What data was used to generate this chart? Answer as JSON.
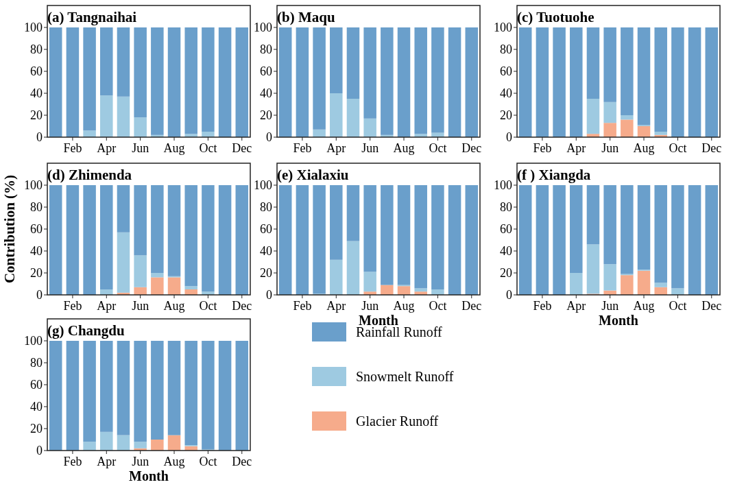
{
  "chart_data": [
    {
      "type": "bar",
      "stacked": true,
      "title": "(a) Tangnaihai",
      "categories": [
        null,
        "Feb",
        null,
        "Apr",
        null,
        "Jun",
        null,
        "Aug",
        null,
        "Oct",
        null,
        "Dec"
      ],
      "ylim": [
        0,
        120
      ],
      "yticks": [
        0,
        20,
        40,
        60,
        80,
        100
      ],
      "series": [
        {
          "color": "#f6ab8b",
          "values": [
            0,
            0,
            0,
            0,
            0,
            0,
            0,
            0,
            0,
            0,
            0,
            0
          ]
        },
        {
          "color": "#9ecae1",
          "values": [
            0,
            0,
            6,
            38,
            37,
            18,
            2,
            0,
            3,
            5,
            0,
            0
          ]
        },
        {
          "color": "#6a9fcb",
          "values": [
            100,
            100,
            94,
            62,
            63,
            82,
            98,
            100,
            97,
            95,
            100,
            100
          ]
        }
      ]
    },
    {
      "type": "bar",
      "stacked": true,
      "title": "(b) Maqu",
      "categories": [
        null,
        "Feb",
        null,
        "Apr",
        null,
        "Jun",
        null,
        "Aug",
        null,
        "Oct",
        null,
        "Dec"
      ],
      "ylim": [
        0,
        120
      ],
      "yticks": [
        0,
        20,
        40,
        60,
        80,
        100
      ],
      "series": [
        {
          "color": "#f6ab8b",
          "values": [
            0,
            0,
            0,
            0,
            0,
            0,
            0,
            0,
            0,
            0,
            0,
            0
          ]
        },
        {
          "color": "#9ecae1",
          "values": [
            0,
            0,
            7,
            40,
            35,
            17,
            2,
            0,
            3,
            4,
            0,
            0
          ]
        },
        {
          "color": "#6a9fcb",
          "values": [
            100,
            100,
            93,
            60,
            65,
            83,
            98,
            100,
            97,
            96,
            100,
            100
          ]
        }
      ]
    },
    {
      "type": "bar",
      "stacked": true,
      "title": "(c) Tuotuohe",
      "categories": [
        null,
        "Feb",
        null,
        "Apr",
        null,
        "Jun",
        null,
        "Aug",
        null,
        "Oct",
        null,
        "Dec"
      ],
      "ylim": [
        0,
        120
      ],
      "yticks": [
        0,
        20,
        40,
        60,
        80,
        100
      ],
      "series": [
        {
          "color": "#f6ab8b",
          "values": [
            0,
            0,
            0,
            0,
            3,
            13,
            16,
            10,
            2,
            0,
            0,
            0
          ]
        },
        {
          "color": "#9ecae1",
          "values": [
            0,
            0,
            0,
            0,
            32,
            19,
            4,
            1,
            3,
            0,
            0,
            0
          ]
        },
        {
          "color": "#6a9fcb",
          "values": [
            100,
            100,
            100,
            100,
            65,
            68,
            80,
            89,
            95,
            100,
            100,
            100
          ]
        }
      ]
    },
    {
      "type": "bar",
      "stacked": true,
      "title": "(d) Zhimenda",
      "ylabel": "Contribution (%)",
      "categories": [
        null,
        "Feb",
        null,
        "Apr",
        null,
        "Jun",
        null,
        "Aug",
        null,
        "Oct",
        null,
        "Dec"
      ],
      "ylim": [
        0,
        120
      ],
      "yticks": [
        0,
        20,
        40,
        60,
        80,
        100
      ],
      "series": [
        {
          "color": "#f6ab8b",
          "values": [
            0,
            0,
            0,
            0,
            2,
            7,
            16,
            16,
            5,
            0,
            0,
            0
          ]
        },
        {
          "color": "#9ecae1",
          "values": [
            0,
            0,
            0,
            5,
            55,
            29,
            4,
            1,
            3,
            3,
            0,
            0
          ]
        },
        {
          "color": "#6a9fcb",
          "values": [
            100,
            100,
            100,
            95,
            43,
            64,
            80,
            83,
            92,
            97,
            100,
            100
          ]
        }
      ]
    },
    {
      "type": "bar",
      "stacked": true,
      "title": "(e) Xialaxiu",
      "xlabel": "Month",
      "categories": [
        null,
        "Feb",
        null,
        "Apr",
        null,
        "Jun",
        null,
        "Aug",
        null,
        "Oct",
        null,
        "Dec"
      ],
      "ylim": [
        0,
        120
      ],
      "yticks": [
        0,
        20,
        40,
        60,
        80,
        100
      ],
      "series": [
        {
          "color": "#f6ab8b",
          "values": [
            0,
            0,
            0,
            0,
            0,
            3,
            9,
            8,
            3,
            0,
            0,
            0
          ]
        },
        {
          "color": "#9ecae1",
          "values": [
            0,
            0,
            1,
            32,
            49,
            18,
            0,
            1,
            3,
            5,
            0,
            0
          ]
        },
        {
          "color": "#6a9fcb",
          "values": [
            100,
            100,
            99,
            68,
            51,
            79,
            91,
            91,
            94,
            95,
            100,
            100
          ]
        }
      ]
    },
    {
      "type": "bar",
      "stacked": true,
      "title": "(f ) Xiangda",
      "xlabel": "Month",
      "categories": [
        null,
        "Feb",
        null,
        "Apr",
        null,
        "Jun",
        null,
        "Aug",
        null,
        "Oct",
        null,
        "Dec"
      ],
      "ylim": [
        0,
        120
      ],
      "yticks": [
        0,
        20,
        40,
        60,
        80,
        100
      ],
      "series": [
        {
          "color": "#f6ab8b",
          "values": [
            0,
            0,
            0,
            0,
            1,
            4,
            18,
            22,
            7,
            0,
            0,
            0
          ]
        },
        {
          "color": "#9ecae1",
          "values": [
            0,
            0,
            0,
            20,
            45,
            24,
            1,
            1,
            4,
            6,
            0,
            0
          ]
        },
        {
          "color": "#6a9fcb",
          "values": [
            100,
            100,
            100,
            80,
            54,
            72,
            81,
            77,
            89,
            94,
            100,
            100
          ]
        }
      ]
    },
    {
      "type": "bar",
      "stacked": true,
      "title": "(g) Changdu",
      "xlabel": "Month",
      "legend": "right",
      "categories": [
        null,
        "Feb",
        null,
        "Apr",
        null,
        "Jun",
        null,
        "Aug",
        null,
        "Oct",
        null,
        "Dec"
      ],
      "ylim": [
        0,
        120
      ],
      "yticks": [
        0,
        20,
        40,
        60,
        80,
        100
      ],
      "series": [
        {
          "name": "Glacier Runoff",
          "color": "#f6ab8b",
          "values": [
            0,
            0,
            0,
            0,
            0,
            2,
            10,
            14,
            4,
            0,
            0,
            0
          ]
        },
        {
          "name": "Snowmelt Runoff",
          "color": "#9ecae1",
          "values": [
            0,
            0,
            8,
            17,
            14,
            6,
            0,
            0,
            1,
            1,
            0,
            0
          ]
        },
        {
          "name": "Rainfall Runoff",
          "color": "#6a9fcb",
          "values": [
            100,
            100,
            92,
            83,
            86,
            92,
            90,
            86,
            95,
            99,
            100,
            100
          ]
        }
      ]
    }
  ]
}
